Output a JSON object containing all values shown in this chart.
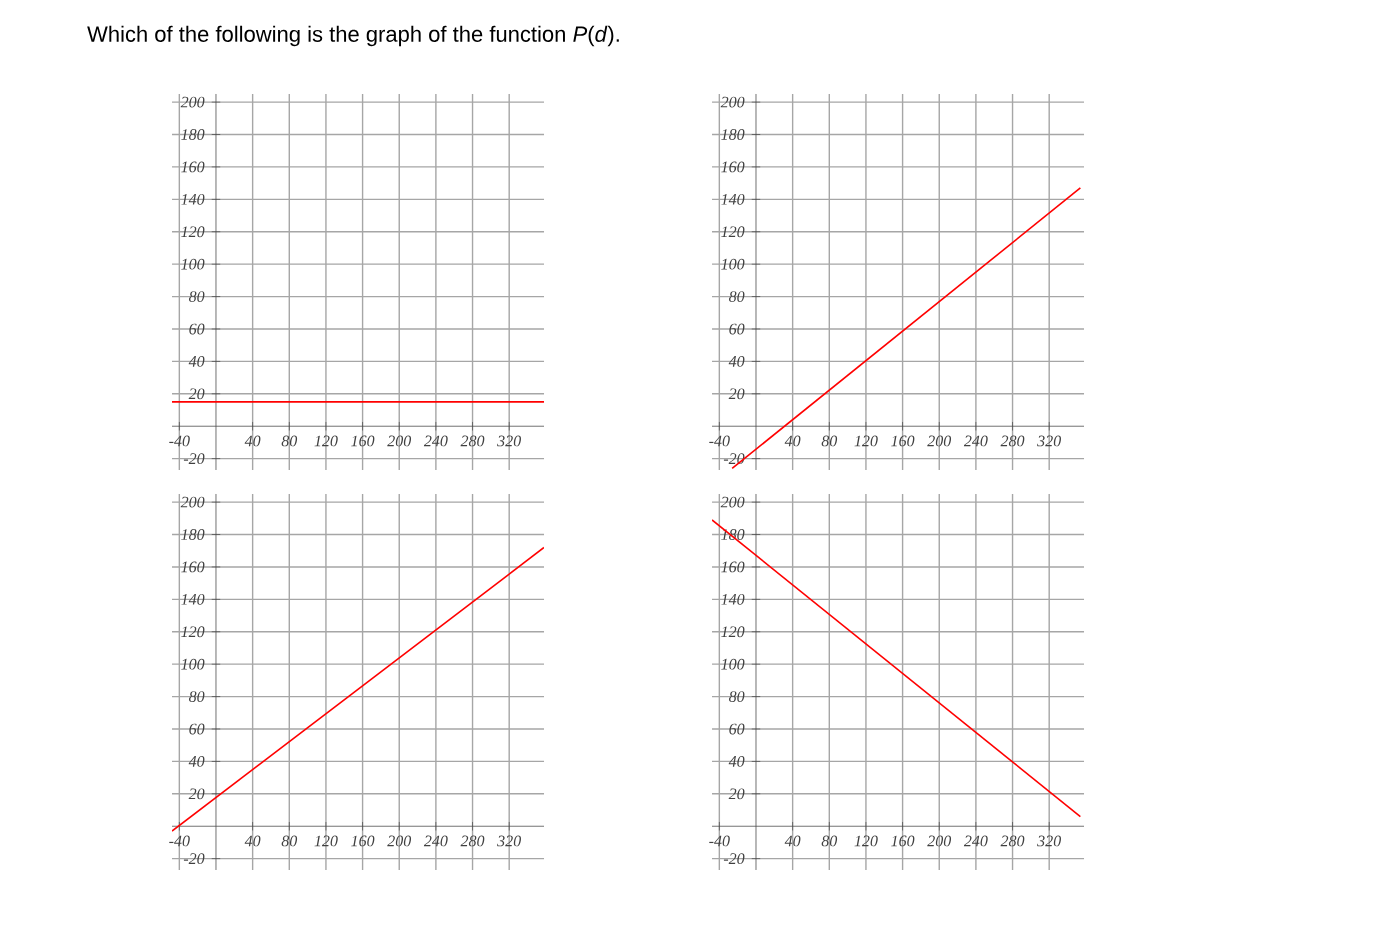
{
  "chart_data": [
    {
      "type": "line",
      "title": "Which of the following is the graph of the function *P*(*d*).",
      "xlim": [
        -48,
        358
      ],
      "ylim": [
        -27,
        205
      ],
      "xticks": [
        -40,
        40,
        80,
        120,
        160,
        200,
        240,
        280,
        320
      ],
      "yticks": [
        -20,
        20,
        40,
        60,
        80,
        100,
        120,
        140,
        160,
        180,
        200
      ],
      "grid": true,
      "series": [
        {
          "color": "#ff0000",
          "x": [
            -48,
            358
          ],
          "values": [
            15,
            15
          ]
        }
      ]
    },
    {
      "type": "line",
      "xlim": [
        -48,
        358
      ],
      "ylim": [
        -27,
        205
      ],
      "xticks": [
        -40,
        40,
        80,
        120,
        160,
        200,
        240,
        280,
        320
      ],
      "yticks": [
        -20,
        20,
        40,
        60,
        80,
        100,
        120,
        140,
        160,
        180,
        200
      ],
      "grid": true,
      "series": [
        {
          "color": "#ff0000",
          "x": [
            -26,
            354
          ],
          "values": [
            -26,
            147
          ]
        }
      ]
    },
    {
      "type": "line",
      "xlim": [
        -48,
        358
      ],
      "ylim": [
        -27,
        205
      ],
      "xticks": [
        -40,
        40,
        80,
        120,
        160,
        200,
        240,
        280,
        320
      ],
      "yticks": [
        -20,
        20,
        40,
        60,
        80,
        100,
        120,
        140,
        160,
        180,
        200
      ],
      "grid": true,
      "series": [
        {
          "color": "#ff0000",
          "x": [
            -48,
            358
          ],
          "values": [
            -3,
            172
          ]
        }
      ]
    },
    {
      "type": "line",
      "xlim": [
        -48,
        358
      ],
      "ylim": [
        -27,
        205
      ],
      "xticks": [
        -40,
        40,
        80,
        120,
        160,
        200,
        240,
        280,
        320
      ],
      "yticks": [
        -20,
        20,
        40,
        60,
        80,
        100,
        120,
        140,
        160,
        180,
        200
      ],
      "grid": true,
      "series": [
        {
          "color": "#ff0000",
          "x": [
            -48,
            354
          ],
          "values": [
            189,
            6
          ]
        }
      ]
    }
  ]
}
